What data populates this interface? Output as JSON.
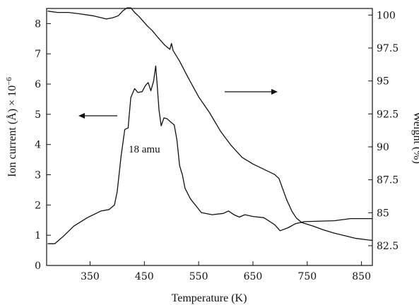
{
  "chart_data": {
    "type": "line",
    "xlabel": "Temperature (K)",
    "ylabel_left": "Ion current (Å) × 10",
    "ylabel_left_exponent": "−6",
    "ylabel_right": "Weight (%)",
    "xlim": [
      270,
      870
    ],
    "ylim_left": [
      0,
      8.5
    ],
    "ylim_right": [
      81,
      100.5
    ],
    "x_ticks": [
      350,
      450,
      550,
      650,
      750,
      850
    ],
    "y_left_ticks": [
      0,
      1,
      2,
      3,
      4,
      5,
      6,
      7,
      8
    ],
    "y_right_ticks": [
      "82.5",
      "85",
      "87.5",
      "90",
      "92.5",
      "95",
      "97.5",
      "100"
    ],
    "annotation": "18 amu",
    "series": [
      {
        "axis": "left",
        "points": [
          [
            272,
            0.72
          ],
          [
            285,
            0.72
          ],
          [
            300,
            0.95
          ],
          [
            320,
            1.3
          ],
          [
            345,
            1.58
          ],
          [
            370,
            1.8
          ],
          [
            385,
            1.85
          ],
          [
            395,
            2.0
          ],
          [
            400,
            2.45
          ],
          [
            407,
            3.6
          ],
          [
            414,
            4.5
          ],
          [
            420,
            4.55
          ],
          [
            425,
            5.55
          ],
          [
            432,
            5.85
          ],
          [
            438,
            5.72
          ],
          [
            446,
            5.75
          ],
          [
            452,
            5.95
          ],
          [
            457,
            6.05
          ],
          [
            462,
            5.78
          ],
          [
            467,
            6.1
          ],
          [
            471,
            6.6
          ],
          [
            474,
            5.9
          ],
          [
            477,
            5.15
          ],
          [
            481,
            4.62
          ],
          [
            486,
            4.88
          ],
          [
            492,
            4.85
          ],
          [
            500,
            4.72
          ],
          [
            505,
            4.65
          ],
          [
            510,
            4.15
          ],
          [
            515,
            3.3
          ],
          [
            520,
            3.0
          ],
          [
            525,
            2.55
          ],
          [
            535,
            2.2
          ],
          [
            555,
            1.75
          ],
          [
            575,
            1.68
          ],
          [
            595,
            1.72
          ],
          [
            605,
            1.8
          ],
          [
            615,
            1.68
          ],
          [
            625,
            1.6
          ],
          [
            635,
            1.68
          ],
          [
            650,
            1.62
          ],
          [
            670,
            1.58
          ],
          [
            690,
            1.35
          ],
          [
            700,
            1.15
          ],
          [
            715,
            1.25
          ],
          [
            728,
            1.38
          ],
          [
            745,
            1.45
          ],
          [
            800,
            1.48
          ],
          [
            830,
            1.55
          ],
          [
            870,
            1.55
          ]
        ]
      },
      {
        "axis": "right",
        "points": [
          [
            272,
            100.3
          ],
          [
            290,
            100.2
          ],
          [
            310,
            100.2
          ],
          [
            330,
            100.1
          ],
          [
            355,
            99.95
          ],
          [
            380,
            99.7
          ],
          [
            392,
            99.8
          ],
          [
            402,
            99.95
          ],
          [
            410,
            100.3
          ],
          [
            418,
            100.55
          ],
          [
            425,
            100.55
          ],
          [
            432,
            100.2
          ],
          [
            440,
            99.9
          ],
          [
            455,
            99.2
          ],
          [
            465,
            98.8
          ],
          [
            475,
            98.3
          ],
          [
            488,
            97.7
          ],
          [
            497,
            97.4
          ],
          [
            500,
            97.85
          ],
          [
            503,
            97.3
          ],
          [
            515,
            96.5
          ],
          [
            530,
            95.3
          ],
          [
            550,
            93.8
          ],
          [
            570,
            92.6
          ],
          [
            590,
            91.2
          ],
          [
            610,
            90.1
          ],
          [
            630,
            89.2
          ],
          [
            650,
            88.7
          ],
          [
            670,
            88.3
          ],
          [
            690,
            87.9
          ],
          [
            698,
            87.6
          ],
          [
            705,
            86.8
          ],
          [
            712,
            86.0
          ],
          [
            722,
            85.1
          ],
          [
            730,
            84.6
          ],
          [
            740,
            84.25
          ],
          [
            760,
            84.0
          ],
          [
            780,
            83.7
          ],
          [
            800,
            83.45
          ],
          [
            820,
            83.25
          ],
          [
            840,
            83.05
          ],
          [
            860,
            82.95
          ],
          [
            870,
            82.9
          ]
        ]
      }
    ]
  }
}
